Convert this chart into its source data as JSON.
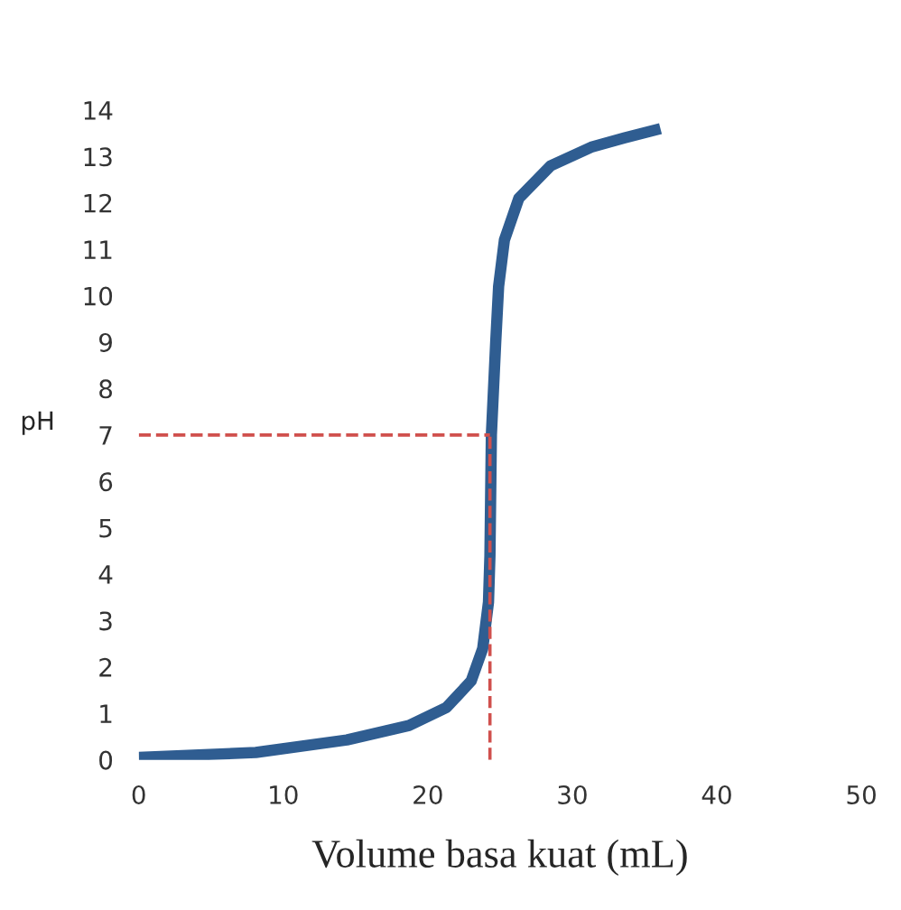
{
  "chart_data": {
    "type": "line",
    "xlabel": "Volume basa kuat (mL)",
    "ylabel": "pH",
    "x": [
      0,
      8.1,
      14.4,
      18.7,
      21.3,
      23.0,
      23.8,
      24.2,
      24.3,
      24.4,
      24.7,
      24.9,
      25.3,
      26.3,
      28.5,
      31.3,
      33.6,
      36.1
    ],
    "series": [
      {
        "color": "#2f5d91",
        "values": [
          0.05,
          0.16,
          0.43,
          0.74,
          1.13,
          1.7,
          2.4,
          3.4,
          4.4,
          7.0,
          9.0,
          10.2,
          11.2,
          12.1,
          12.8,
          13.2,
          13.4,
          13.6
        ]
      }
    ],
    "xlim": [
      0,
      50
    ],
    "xticks": [
      0,
      10,
      20,
      30,
      40,
      50
    ],
    "ylim": [
      0,
      14
    ],
    "yticks": [
      0,
      1,
      2,
      3,
      4,
      5,
      6,
      7,
      8,
      9,
      10,
      11,
      12,
      13,
      14
    ],
    "ref_lines": [
      {
        "axis": "x",
        "value": 24.3,
        "color": "#d0504d",
        "line_style": "dashed"
      },
      {
        "axis": "y",
        "value": 7,
        "color": "#d0504d",
        "line_style": "dashed"
      }
    ],
    "grid": false,
    "legend": false,
    "marker": "none",
    "line_style": "solid"
  }
}
